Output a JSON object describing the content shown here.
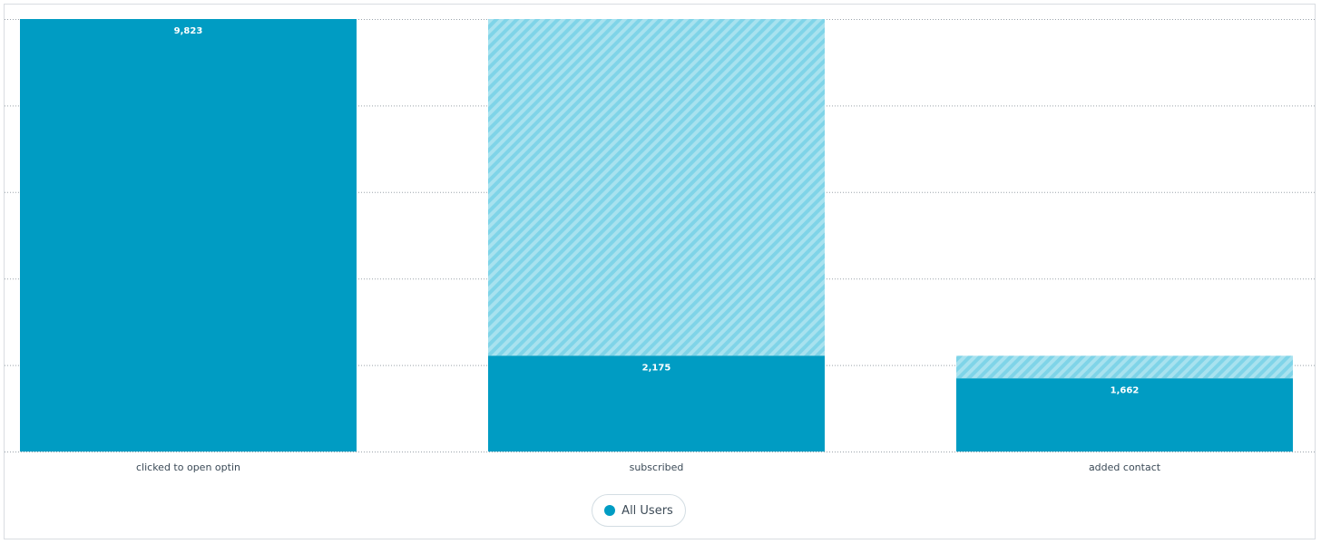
{
  "chart_data": {
    "type": "bar",
    "categories": [
      "clicked to open optin",
      "subscribed",
      "added contact"
    ],
    "series": [
      {
        "name": "All Users",
        "values": [
          9823,
          2175,
          1662
        ]
      }
    ],
    "previous_step_values": [
      null,
      9823,
      2175
    ],
    "data_labels": [
      "9,823",
      "2,175",
      "1,662"
    ],
    "title": "",
    "xlabel": "",
    "ylabel": "",
    "ylim": [
      0,
      9823
    ],
    "grid": true,
    "legend_position": "bottom-center"
  },
  "legend": {
    "label": "All Users"
  },
  "colors": {
    "bar": "#009cc3",
    "dropoff_light": "#a8e2ef",
    "dropoff_stripe": "#7fd4e8",
    "grid": "#9aa3aa"
  }
}
